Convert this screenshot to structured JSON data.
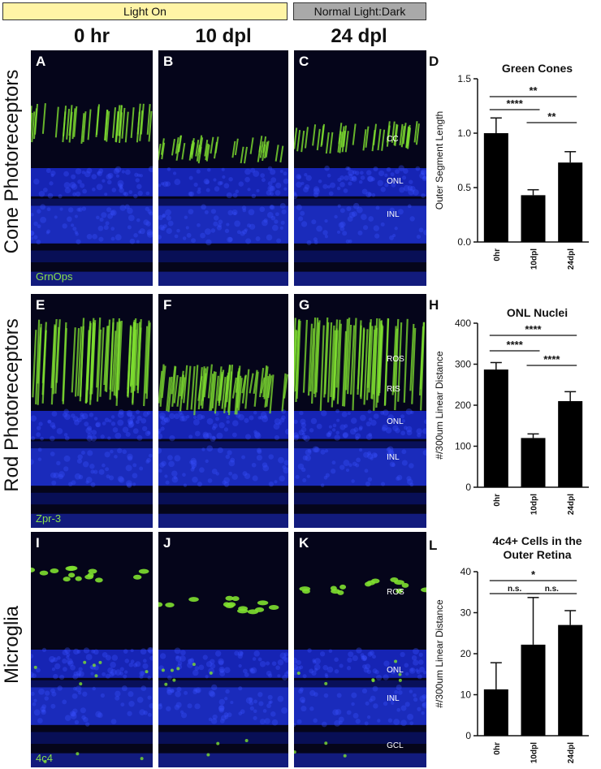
{
  "banners": {
    "light_on": "Light On",
    "normal": "Normal Light:Dark"
  },
  "columns": [
    "0 hr",
    "10 dpl",
    "24 dpl"
  ],
  "rows": [
    "Cone Photoreceptors",
    "Rod Photoreceptors",
    "Microglia"
  ],
  "panels": [
    {
      "letter": "A",
      "stain": "GrnOps",
      "layers": []
    },
    {
      "letter": "B",
      "stain": "",
      "layers": []
    },
    {
      "letter": "C",
      "stain": "",
      "layers": [
        "CC",
        "ONL",
        "INL"
      ]
    },
    {
      "letter": "E",
      "stain": "Zpr-3",
      "layers": []
    },
    {
      "letter": "F",
      "stain": "",
      "layers": []
    },
    {
      "letter": "G",
      "stain": "",
      "layers": [
        "ROS",
        "RIS",
        "ONL",
        "INL"
      ]
    },
    {
      "letter": "I",
      "stain": "4c4",
      "layers": []
    },
    {
      "letter": "J",
      "stain": "",
      "layers": []
    },
    {
      "letter": "K",
      "stain": "",
      "layers": [
        "ROS",
        "ONL",
        "INL",
        "GCL"
      ]
    }
  ],
  "chart_data": [
    {
      "letter": "D",
      "type": "bar",
      "title": "Green Cones",
      "ylabel": "Outer Segment Length",
      "categories": [
        "0hr",
        "10dpl",
        "24dpl"
      ],
      "values": [
        1.0,
        0.43,
        0.73
      ],
      "errors": [
        0.14,
        0.05,
        0.1
      ],
      "ylim": [
        0,
        1.5
      ],
      "yticks": [
        "0.0",
        "0.5",
        "1.0",
        "1.5"
      ],
      "significance": [
        {
          "from": 0,
          "to": 2,
          "label": "**"
        },
        {
          "from": 0,
          "to": 1,
          "label": "****"
        },
        {
          "from": 1,
          "to": 2,
          "label": "**"
        }
      ]
    },
    {
      "letter": "H",
      "type": "bar",
      "title": "ONL Nuclei",
      "ylabel": "#/300um Linear Distance",
      "categories": [
        "0hr",
        "10dpl",
        "24dpl"
      ],
      "values": [
        287,
        120,
        210
      ],
      "errors": [
        17,
        10,
        23
      ],
      "ylim": [
        0,
        400
      ],
      "yticks": [
        "0",
        "100",
        "200",
        "300",
        "400"
      ],
      "significance": [
        {
          "from": 0,
          "to": 2,
          "label": "****"
        },
        {
          "from": 0,
          "to": 1,
          "label": "****"
        },
        {
          "from": 1,
          "to": 2,
          "label": "****"
        }
      ]
    },
    {
      "letter": "L",
      "type": "bar",
      "title": "4c4+ Cells in the Outer Retina",
      "title_lines": [
        "4c4+ Cells in the",
        "Outer Retina"
      ],
      "ylabel": "#/300um Linear Distance",
      "categories": [
        "0hr",
        "10dpl",
        "24dpl"
      ],
      "values": [
        11.3,
        22.2,
        27.0
      ],
      "errors": [
        6.5,
        11.5,
        3.5
      ],
      "ylim": [
        0,
        40
      ],
      "yticks": [
        "0",
        "10",
        "20",
        "30",
        "40"
      ],
      "significance": [
        {
          "from": 0,
          "to": 2,
          "label": "*"
        },
        {
          "from": 0,
          "to": 1,
          "label": "n.s."
        },
        {
          "from": 1,
          "to": 2,
          "label": "n.s."
        }
      ]
    }
  ]
}
